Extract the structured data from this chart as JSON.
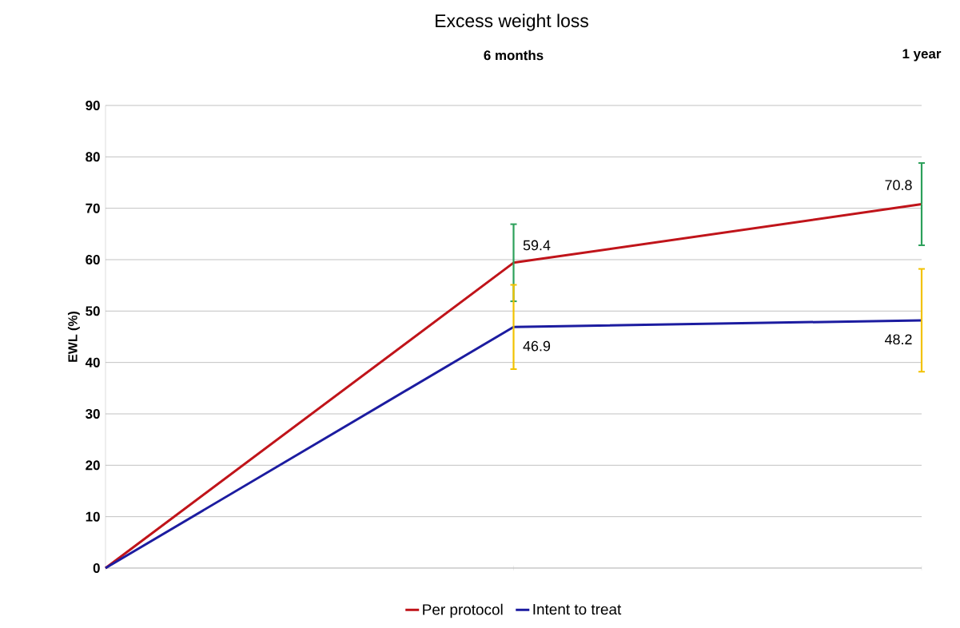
{
  "chart_data": {
    "type": "line",
    "title": "Excess weight loss",
    "ylabel": "EWL (%)",
    "categories": [
      null,
      "6 months",
      "1 year"
    ],
    "series": [
      {
        "name": "Per protocol",
        "color": "#c0141a",
        "values": [
          0,
          59.4,
          70.8
        ],
        "errors": [
          null,
          7.5,
          8
        ],
        "value_labels": [
          null,
          "59.4",
          "70.8"
        ]
      },
      {
        "name": "Intent to treat",
        "color": "#1c1ca0",
        "values": [
          0,
          46.9,
          48.2
        ],
        "errors": [
          null,
          8.2,
          10
        ],
        "value_labels": [
          null,
          "46.9",
          "48.2"
        ]
      }
    ],
    "ylim": [
      0,
      90
    ],
    "yticks": [
      0,
      10,
      20,
      30,
      40,
      50,
      60,
      70,
      80,
      90
    ],
    "grid": "y",
    "legend": "bottom",
    "marker": "none",
    "line_style": "solid"
  }
}
